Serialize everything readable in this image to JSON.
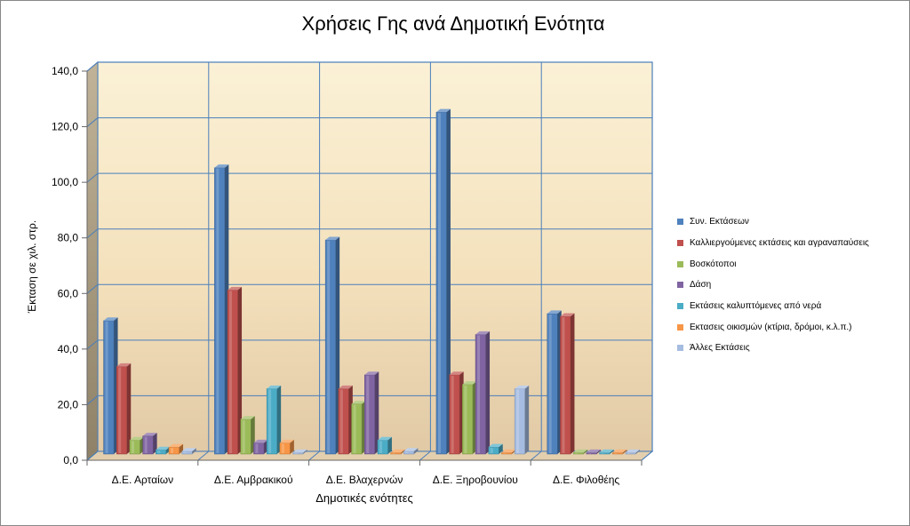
{
  "chart_data": {
    "type": "bar",
    "title": "Χρήσεις Γης ανά Δημοτική Ενότητα",
    "xlabel": "Δημοτικές ενότητες",
    "ylabel": "Έκταση σε χιλ. στρ.",
    "ylim": [
      0,
      140
    ],
    "yticks": [
      "0,0",
      "20,0",
      "40,0",
      "60,0",
      "80,0",
      "100,0",
      "120,0",
      "140,0"
    ],
    "grid": true,
    "legend_position": "right",
    "categories": [
      "Δ.Ε. Αρταίων",
      "Δ.Ε. Αμβρακικού",
      "Δ.Ε. Βλαχερνών",
      "Δ.Ε. Ξηροβουνίου",
      "Δ.Ε. Φιλοθέης"
    ],
    "series": [
      {
        "name": "Συν. Εκτάσεων",
        "color": "#4F81BD",
        "values": [
          48.0,
          103.0,
          77.0,
          123.0,
          50.5
        ]
      },
      {
        "name": "Καλλιεργούμενες εκτάσεις και αγραναπαύσεις",
        "color": "#C0504D",
        "values": [
          31.5,
          59.0,
          23.5,
          28.5,
          49.5
        ]
      },
      {
        "name": "Βοσκότοποι",
        "color": "#9BBB59",
        "values": [
          5.0,
          12.5,
          18.0,
          25.0,
          0.2
        ]
      },
      {
        "name": "Δάση",
        "color": "#8064A2",
        "values": [
          6.5,
          4.0,
          28.5,
          43.0,
          0.2
        ]
      },
      {
        "name": "Εκτάσεις καλυπτόμενες από νερά",
        "color": "#4BACC6",
        "values": [
          1.5,
          23.5,
          5.0,
          2.5,
          0.2
        ]
      },
      {
        "name": "Εκτασεις οικισμών (κτίρια, δρόμοι, κ.λ.π.)",
        "color": "#F79646",
        "values": [
          2.5,
          4.0,
          0.5,
          0.5,
          0.5
        ]
      },
      {
        "name": "Άλλες Εκτάσεις",
        "color": "#A6BCE0",
        "values": [
          1.0,
          0.2,
          1.0,
          23.5,
          0.2
        ]
      }
    ]
  }
}
